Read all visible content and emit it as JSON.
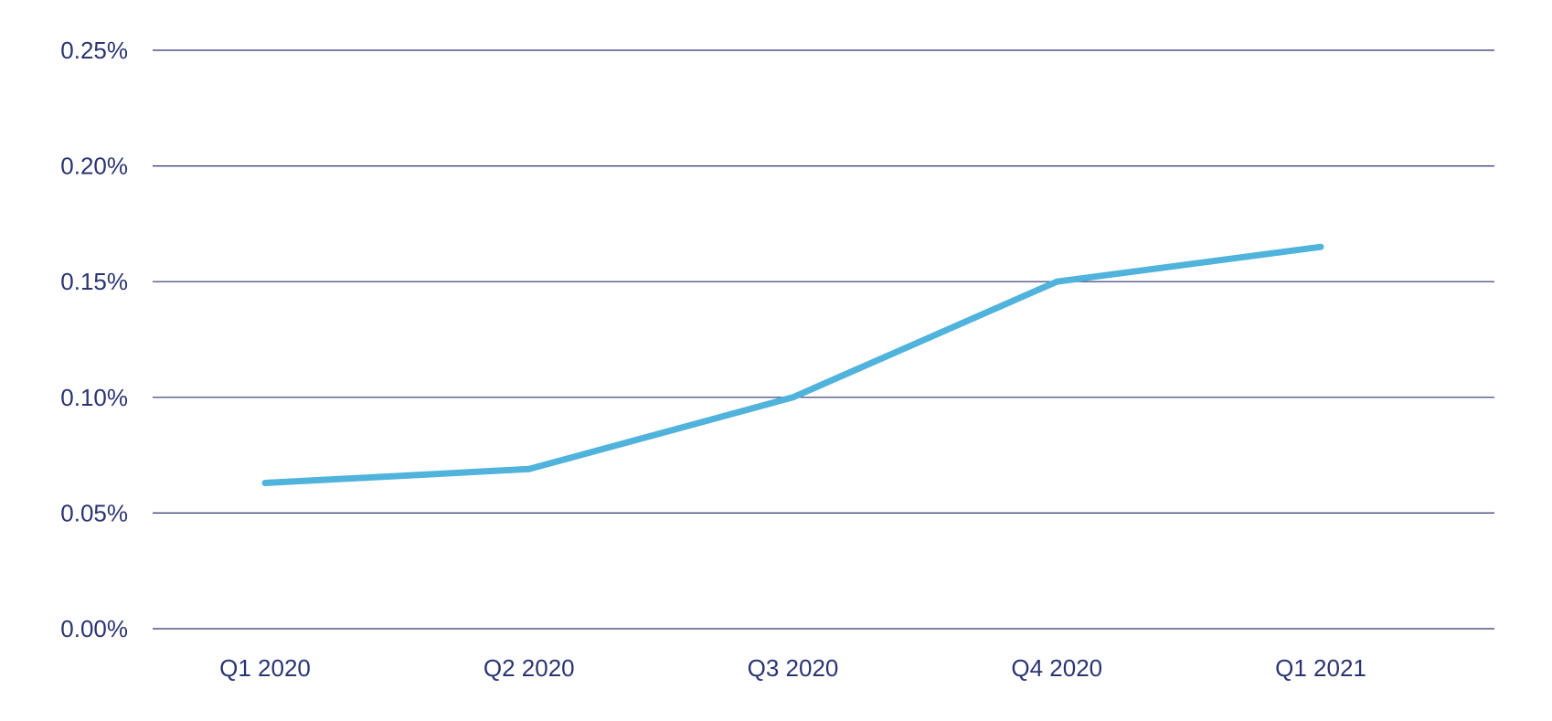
{
  "chart_data": {
    "type": "line",
    "title": "",
    "xlabel": "",
    "ylabel": "",
    "categories": [
      "Q1 2020",
      "Q2 2020",
      "Q3 2020",
      "Q4 2020",
      "Q1 2021"
    ],
    "series": [
      {
        "values": [
          0.063,
          0.069,
          0.1,
          0.15,
          0.165
        ],
        "color": "#4fb3dc"
      }
    ],
    "ylim": [
      0,
      0.25
    ],
    "y_ticks": [
      0,
      0.05,
      0.1,
      0.15,
      0.2,
      0.25
    ],
    "y_tick_labels": [
      "0.00%",
      "0.05%",
      "0.10%",
      "0.15%",
      "0.20%",
      "0.25%"
    ],
    "grid": true,
    "legend": "none",
    "colors": {
      "axis_text": "#2b3470",
      "grid": "#2b3470",
      "line": "#4fb3dc"
    }
  }
}
